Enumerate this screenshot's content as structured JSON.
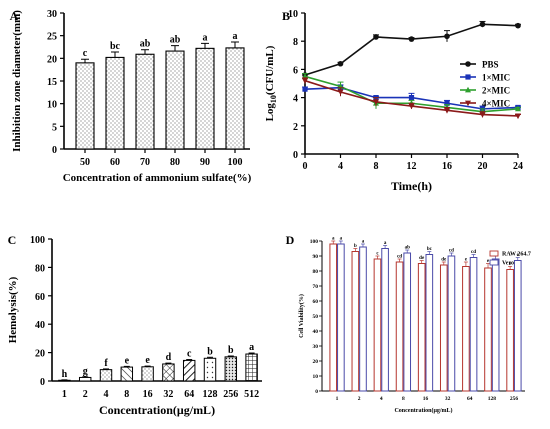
{
  "chart_data": [
    {
      "id": "A",
      "panel_label": "A",
      "type": "bar",
      "title": "",
      "xlabel": "Concentration of ammonium sulfate(%)",
      "ylabel": "Inhibition zone diameter(mm)",
      "ylim": [
        0,
        30
      ],
      "yticks": [
        0,
        5,
        10,
        15,
        20,
        25,
        30
      ],
      "categories": [
        "50",
        "60",
        "70",
        "80",
        "90",
        "100"
      ],
      "values": [
        19.0,
        20.2,
        20.9,
        21.6,
        22.2,
        22.3
      ],
      "errors": [
        0.8,
        1.2,
        1.0,
        1.2,
        1.1,
        1.3
      ],
      "letters": [
        "c",
        "bc",
        "ab",
        "ab",
        "a",
        "a"
      ],
      "pattern": "dots",
      "grid": false
    },
    {
      "id": "B",
      "panel_label": "B",
      "type": "line",
      "title": "",
      "xlabel": "Time(h)",
      "ylabel": "Log10(CFU/mL)",
      "ylabel_main": "Log",
      "ylabel_sub": "10",
      "ylabel_rest": "(CFU/mL)",
      "xlim": [
        0,
        24
      ],
      "ylim": [
        0,
        10
      ],
      "xticks": [
        0,
        4,
        8,
        12,
        16,
        20,
        24
      ],
      "yticks": [
        0,
        2,
        4,
        6,
        8,
        10
      ],
      "legend_position": "right",
      "grid": false,
      "series": [
        {
          "name": "PBS",
          "color": "#111111",
          "marker": "circle",
          "x": [
            0,
            4,
            8,
            12,
            16,
            20,
            24
          ],
          "y": [
            5.6,
            6.4,
            8.3,
            8.15,
            8.35,
            9.2,
            9.1
          ],
          "err": [
            0.1,
            0.1,
            0.15,
            0.1,
            0.4,
            0.2,
            0.1
          ]
        },
        {
          "name": "1×MIC",
          "color": "#1a33b8",
          "marker": "square",
          "x": [
            0,
            4,
            8,
            12,
            16,
            20,
            24
          ],
          "y": [
            4.6,
            4.7,
            4.0,
            4.0,
            3.6,
            3.2,
            3.3
          ],
          "err": [
            0.15,
            0.2,
            0.1,
            0.3,
            0.2,
            0.2,
            0.1
          ]
        },
        {
          "name": "2×MIC",
          "color": "#2ea02e",
          "marker": "triangle",
          "x": [
            0,
            4,
            8,
            12,
            16,
            20,
            24
          ],
          "y": [
            5.5,
            4.8,
            3.6,
            3.6,
            3.3,
            3.0,
            3.2
          ],
          "err": [
            0.2,
            0.3,
            0.4,
            0.2,
            0.2,
            0.2,
            0.1
          ]
        },
        {
          "name": "4×MIC",
          "color": "#8b1a1a",
          "marker": "triangle-down",
          "x": [
            0,
            4,
            8,
            12,
            16,
            20,
            24
          ],
          "y": [
            5.2,
            4.4,
            3.7,
            3.4,
            3.1,
            2.8,
            2.7
          ],
          "err": [
            0.2,
            0.3,
            0.3,
            0.2,
            0.2,
            0.2,
            0.1
          ]
        }
      ]
    },
    {
      "id": "C",
      "panel_label": "C",
      "type": "bar",
      "title": "",
      "xlabel": "Concentration(μg/mL)",
      "ylabel": "Hemolysis(%)",
      "ylim": [
        0,
        100
      ],
      "yticks": [
        0,
        20,
        40,
        60,
        80,
        100
      ],
      "categories": [
        "1",
        "2",
        "4",
        "8",
        "16",
        "32",
        "64",
        "128",
        "256",
        "512"
      ],
      "values": [
        0.5,
        2.5,
        8.0,
        9.8,
        10.0,
        12.0,
        14.5,
        16.0,
        17.0,
        19.0
      ],
      "errors": [
        0.3,
        0.4,
        0.5,
        0.5,
        0.5,
        0.6,
        0.6,
        0.7,
        0.6,
        0.7
      ],
      "letters": [
        "h",
        "g",
        "f",
        "e",
        "e",
        "d",
        "c",
        "b",
        "b",
        "a"
      ],
      "patterns": [
        "none",
        "none",
        "dots",
        "hatch-back",
        "dots",
        "hatch-cross",
        "hatch-forward",
        "dots-sparse",
        "dots-dense",
        "grid"
      ],
      "grid": false
    },
    {
      "id": "D",
      "panel_label": "D",
      "type": "bar",
      "title": "",
      "xlabel": "Concentration(μg/mL)",
      "ylabel": "Cell Viability(%)",
      "ylim": [
        0,
        100
      ],
      "yticks": [
        0,
        10,
        20,
        30,
        40,
        50,
        60,
        70,
        80,
        90,
        100
      ],
      "categories": [
        "1",
        "2",
        "4",
        "8",
        "16",
        "32",
        "64",
        "128",
        "256"
      ],
      "legend_position": "top-right",
      "grid": false,
      "series": [
        {
          "name": "RAW 264.7",
          "color": "#b5352e",
          "values": [
            98,
            93,
            88,
            86,
            85,
            84,
            83,
            82,
            81
          ],
          "errors": [
            2,
            2,
            2,
            2,
            2,
            2,
            3,
            3,
            2
          ],
          "letters": [
            "a",
            "b",
            "c",
            "cd",
            "de",
            "de",
            "e",
            "e",
            "e"
          ]
        },
        {
          "name": "Vero",
          "color": "#4a4aa8",
          "values": [
            98,
            96,
            95,
            92,
            91,
            90,
            89,
            88,
            87
          ],
          "errors": [
            2,
            2,
            2,
            2,
            2,
            2,
            2,
            2,
            2
          ],
          "letters": [
            "a",
            "a",
            "a",
            "ab",
            "bc",
            "cd",
            "cd",
            "cd",
            "c"
          ]
        }
      ]
    }
  ]
}
